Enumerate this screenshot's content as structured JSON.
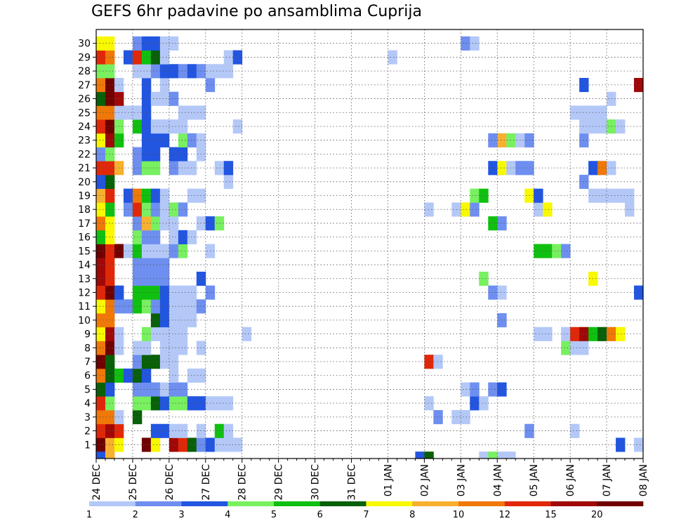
{
  "chart_data": {
    "type": "heatmap",
    "title": "GEFS 6hr padavine po ansamblima Cuprija",
    "x_tick_labels": [
      "24 DEC",
      "25 DEC",
      "26 DEC",
      "27 DEC",
      "28 DEC",
      "29 DEC",
      "30 DEC",
      "31 DEC",
      "01 JAN",
      "02 JAN",
      "03 JAN",
      "04 JAN",
      "05 JAN",
      "06 JAN",
      "07 JAN",
      "08 JAN"
    ],
    "y_tick_labels": [
      "1",
      "2",
      "3",
      "4",
      "5",
      "6",
      "7",
      "8",
      "9",
      "10",
      "11",
      "12",
      "13",
      "14",
      "15",
      "16",
      "17",
      "18",
      "19",
      "20",
      "21",
      "22",
      "23",
      "24",
      "25",
      "26",
      "27",
      "28",
      "29",
      "30"
    ],
    "time_steps_per_day": 4,
    "total_time_steps": 60,
    "grid": "dotted",
    "legend": {
      "position": "bottom",
      "labels": [
        "1",
        "2",
        "3",
        "4",
        "5",
        "6",
        "7",
        "8",
        "10",
        "12",
        "15",
        "20"
      ],
      "colors": [
        "#b4c8f8",
        "#6e8ff0",
        "#2255e0",
        "#78f060",
        "#10c010",
        "#086008",
        "#f8f800",
        "#f8b030",
        "#f07808",
        "#e02808",
        "#a00808",
        "#700000"
      ]
    },
    "cells": [
      [
        1,
        0,
        11
      ],
      [
        1,
        1,
        7
      ],
      [
        1,
        2,
        6
      ],
      [
        1,
        5,
        11
      ],
      [
        1,
        6,
        6
      ],
      [
        1,
        8,
        10
      ],
      [
        1,
        9,
        9
      ],
      [
        1,
        10,
        5
      ],
      [
        1,
        11,
        1
      ],
      [
        1,
        12,
        2
      ],
      [
        1,
        13,
        0
      ],
      [
        1,
        14,
        0
      ],
      [
        1,
        15,
        0
      ],
      [
        1,
        57,
        2
      ],
      [
        1,
        59,
        0
      ],
      [
        2,
        0,
        9
      ],
      [
        2,
        1,
        10
      ],
      [
        2,
        2,
        9
      ],
      [
        2,
        6,
        2
      ],
      [
        2,
        7,
        2
      ],
      [
        2,
        8,
        0
      ],
      [
        2,
        9,
        0
      ],
      [
        2,
        11,
        0
      ],
      [
        2,
        13,
        4
      ],
      [
        2,
        14,
        0
      ],
      [
        2,
        47,
        1
      ],
      [
        2,
        52,
        0
      ],
      [
        3,
        0,
        8
      ],
      [
        3,
        1,
        8
      ],
      [
        3,
        2,
        0
      ],
      [
        3,
        4,
        5
      ],
      [
        3,
        37,
        1
      ],
      [
        3,
        39,
        0
      ],
      [
        3,
        40,
        0
      ],
      [
        4,
        0,
        9
      ],
      [
        4,
        1,
        3
      ],
      [
        4,
        4,
        3
      ],
      [
        4,
        5,
        3
      ],
      [
        4,
        6,
        5
      ],
      [
        4,
        7,
        2
      ],
      [
        4,
        8,
        3
      ],
      [
        4,
        9,
        3
      ],
      [
        4,
        10,
        2
      ],
      [
        4,
        11,
        2
      ],
      [
        4,
        12,
        0
      ],
      [
        4,
        13,
        0
      ],
      [
        4,
        14,
        0
      ],
      [
        4,
        36,
        0
      ],
      [
        4,
        41,
        2
      ],
      [
        4,
        42,
        0
      ],
      [
        5,
        0,
        5
      ],
      [
        5,
        1,
        2
      ],
      [
        5,
        4,
        1
      ],
      [
        5,
        5,
        1
      ],
      [
        5,
        6,
        1
      ],
      [
        5,
        7,
        0
      ],
      [
        5,
        8,
        1
      ],
      [
        5,
        9,
        1
      ],
      [
        5,
        40,
        0
      ],
      [
        5,
        41,
        1
      ],
      [
        5,
        43,
        1
      ],
      [
        5,
        44,
        2
      ],
      [
        6,
        0,
        8
      ],
      [
        6,
        1,
        5
      ],
      [
        6,
        2,
        4
      ],
      [
        6,
        3,
        2
      ],
      [
        6,
        4,
        5
      ],
      [
        6,
        5,
        2
      ],
      [
        6,
        8,
        0
      ],
      [
        6,
        10,
        0
      ],
      [
        6,
        11,
        0
      ],
      [
        7,
        0,
        11
      ],
      [
        7,
        1,
        5
      ],
      [
        7,
        4,
        1
      ],
      [
        7,
        5,
        5
      ],
      [
        7,
        6,
        5
      ],
      [
        7,
        7,
        0
      ],
      [
        7,
        8,
        0
      ],
      [
        7,
        36,
        9
      ],
      [
        7,
        37,
        0
      ],
      [
        8,
        0,
        8
      ],
      [
        8,
        1,
        11
      ],
      [
        8,
        2,
        0
      ],
      [
        8,
        4,
        0
      ],
      [
        8,
        5,
        0
      ],
      [
        8,
        7,
        0
      ],
      [
        8,
        8,
        0
      ],
      [
        8,
        9,
        0
      ],
      [
        8,
        11,
        0
      ],
      [
        8,
        51,
        3
      ],
      [
        8,
        52,
        0
      ],
      [
        8,
        53,
        0
      ],
      [
        9,
        0,
        6
      ],
      [
        9,
        1,
        10
      ],
      [
        9,
        2,
        0
      ],
      [
        9,
        5,
        3
      ],
      [
        9,
        6,
        0
      ],
      [
        9,
        7,
        0
      ],
      [
        9,
        8,
        0
      ],
      [
        9,
        9,
        0
      ],
      [
        9,
        16,
        0
      ],
      [
        9,
        48,
        0
      ],
      [
        9,
        49,
        0
      ],
      [
        9,
        51,
        0
      ],
      [
        9,
        52,
        9
      ],
      [
        9,
        53,
        10
      ],
      [
        9,
        54,
        4
      ],
      [
        9,
        55,
        5
      ],
      [
        9,
        56,
        8
      ],
      [
        9,
        57,
        6
      ],
      [
        10,
        0,
        8
      ],
      [
        10,
        1,
        8
      ],
      [
        10,
        6,
        5
      ],
      [
        10,
        7,
        2
      ],
      [
        10,
        8,
        0
      ],
      [
        10,
        9,
        0
      ],
      [
        10,
        10,
        0
      ],
      [
        10,
        44,
        1
      ],
      [
        11,
        0,
        6
      ],
      [
        11,
        1,
        8
      ],
      [
        11,
        2,
        1
      ],
      [
        11,
        3,
        1
      ],
      [
        11,
        4,
        4
      ],
      [
        11,
        5,
        3
      ],
      [
        11,
        6,
        1
      ],
      [
        11,
        7,
        2
      ],
      [
        11,
        8,
        0
      ],
      [
        11,
        9,
        0
      ],
      [
        11,
        10,
        0
      ],
      [
        11,
        11,
        1
      ],
      [
        12,
        0,
        9
      ],
      [
        12,
        1,
        11
      ],
      [
        12,
        2,
        2
      ],
      [
        12,
        4,
        4
      ],
      [
        12,
        5,
        4
      ],
      [
        12,
        6,
        4
      ],
      [
        12,
        7,
        2
      ],
      [
        12,
        8,
        0
      ],
      [
        12,
        9,
        0
      ],
      [
        12,
        10,
        0
      ],
      [
        12,
        12,
        1
      ],
      [
        12,
        43,
        1
      ],
      [
        12,
        44,
        0
      ],
      [
        12,
        59,
        2
      ],
      [
        13,
        0,
        10
      ],
      [
        13,
        1,
        9
      ],
      [
        13,
        4,
        1
      ],
      [
        13,
        5,
        1
      ],
      [
        13,
        6,
        1
      ],
      [
        13,
        7,
        1
      ],
      [
        13,
        11,
        2
      ],
      [
        13,
        42,
        3
      ],
      [
        13,
        54,
        6
      ],
      [
        14,
        0,
        10
      ],
      [
        14,
        1,
        9
      ],
      [
        14,
        4,
        1
      ],
      [
        14,
        5,
        1
      ],
      [
        14,
        6,
        1
      ],
      [
        14,
        7,
        1
      ],
      [
        15,
        0,
        11
      ],
      [
        15,
        1,
        9
      ],
      [
        15,
        2,
        11
      ],
      [
        15,
        3,
        0
      ],
      [
        15,
        4,
        4
      ],
      [
        15,
        5,
        0
      ],
      [
        15,
        6,
        0
      ],
      [
        15,
        7,
        0
      ],
      [
        15,
        8,
        1
      ],
      [
        15,
        9,
        3
      ],
      [
        15,
        12,
        0
      ],
      [
        15,
        48,
        4
      ],
      [
        15,
        49,
        4
      ],
      [
        15,
        50,
        3
      ],
      [
        15,
        51,
        1
      ],
      [
        16,
        0,
        4
      ],
      [
        16,
        1,
        6
      ],
      [
        16,
        4,
        3
      ],
      [
        16,
        5,
        1
      ],
      [
        16,
        6,
        1
      ],
      [
        16,
        8,
        0
      ],
      [
        16,
        9,
        2
      ],
      [
        16,
        10,
        0
      ],
      [
        17,
        0,
        8
      ],
      [
        17,
        1,
        6
      ],
      [
        17,
        4,
        1
      ],
      [
        17,
        5,
        7
      ],
      [
        17,
        6,
        3
      ],
      [
        17,
        7,
        0
      ],
      [
        17,
        8,
        0
      ],
      [
        17,
        11,
        0
      ],
      [
        17,
        12,
        2
      ],
      [
        17,
        13,
        3
      ],
      [
        17,
        43,
        4
      ],
      [
        17,
        44,
        1
      ],
      [
        18,
        0,
        6
      ],
      [
        18,
        1,
        4
      ],
      [
        18,
        3,
        1
      ],
      [
        18,
        4,
        9
      ],
      [
        18,
        5,
        3
      ],
      [
        18,
        6,
        1
      ],
      [
        18,
        7,
        0
      ],
      [
        18,
        8,
        3
      ],
      [
        18,
        9,
        1
      ],
      [
        18,
        36,
        0
      ],
      [
        18,
        39,
        0
      ],
      [
        18,
        40,
        6
      ],
      [
        18,
        41,
        1
      ],
      [
        18,
        48,
        0
      ],
      [
        18,
        49,
        6
      ],
      [
        18,
        58,
        0
      ],
      [
        19,
        0,
        7
      ],
      [
        19,
        1,
        9
      ],
      [
        19,
        3,
        2
      ],
      [
        19,
        4,
        8
      ],
      [
        19,
        5,
        4
      ],
      [
        19,
        6,
        2
      ],
      [
        19,
        7,
        0
      ],
      [
        19,
        10,
        0
      ],
      [
        19,
        11,
        0
      ],
      [
        19,
        41,
        3
      ],
      [
        19,
        42,
        4
      ],
      [
        19,
        47,
        6
      ],
      [
        19,
        48,
        2
      ],
      [
        19,
        54,
        0
      ],
      [
        19,
        55,
        0
      ],
      [
        19,
        56,
        0
      ],
      [
        19,
        57,
        0
      ],
      [
        19,
        58,
        0
      ],
      [
        20,
        0,
        2
      ],
      [
        20,
        1,
        5
      ],
      [
        20,
        14,
        0
      ],
      [
        20,
        53,
        1
      ],
      [
        21,
        0,
        9
      ],
      [
        21,
        1,
        9
      ],
      [
        21,
        2,
        7
      ],
      [
        21,
        4,
        1
      ],
      [
        21,
        5,
        3
      ],
      [
        21,
        6,
        3
      ],
      [
        21,
        8,
        1
      ],
      [
        21,
        9,
        0
      ],
      [
        21,
        10,
        0
      ],
      [
        21,
        13,
        0
      ],
      [
        21,
        14,
        2
      ],
      [
        21,
        43,
        2
      ],
      [
        21,
        44,
        6
      ],
      [
        21,
        45,
        0
      ],
      [
        21,
        46,
        1
      ],
      [
        21,
        47,
        1
      ],
      [
        21,
        54,
        2
      ],
      [
        21,
        55,
        8
      ],
      [
        21,
        56,
        0
      ],
      [
        22,
        0,
        1
      ],
      [
        22,
        1,
        3
      ],
      [
        22,
        4,
        1
      ],
      [
        22,
        5,
        2
      ],
      [
        22,
        6,
        2
      ],
      [
        22,
        8,
        2
      ],
      [
        22,
        9,
        2
      ],
      [
        22,
        11,
        0
      ],
      [
        23,
        0,
        6
      ],
      [
        23,
        1,
        10
      ],
      [
        23,
        2,
        4
      ],
      [
        23,
        5,
        2
      ],
      [
        23,
        6,
        2
      ],
      [
        23,
        7,
        2
      ],
      [
        23,
        9,
        3
      ],
      [
        23,
        10,
        1
      ],
      [
        23,
        11,
        0
      ],
      [
        23,
        43,
        1
      ],
      [
        23,
        44,
        7
      ],
      [
        23,
        45,
        3
      ],
      [
        23,
        46,
        0
      ],
      [
        23,
        47,
        1
      ],
      [
        23,
        53,
        1
      ],
      [
        24,
        0,
        9
      ],
      [
        24,
        1,
        11
      ],
      [
        24,
        2,
        3
      ],
      [
        24,
        4,
        4
      ],
      [
        24,
        5,
        2
      ],
      [
        24,
        6,
        0
      ],
      [
        24,
        7,
        0
      ],
      [
        24,
        8,
        0
      ],
      [
        24,
        9,
        0
      ],
      [
        24,
        15,
        0
      ],
      [
        24,
        53,
        0
      ],
      [
        24,
        54,
        0
      ],
      [
        24,
        55,
        0
      ],
      [
        24,
        56,
        3
      ],
      [
        24,
        57,
        0
      ],
      [
        25,
        0,
        8
      ],
      [
        25,
        1,
        8
      ],
      [
        25,
        2,
        0
      ],
      [
        25,
        3,
        0
      ],
      [
        25,
        4,
        0
      ],
      [
        25,
        5,
        2
      ],
      [
        25,
        9,
        0
      ],
      [
        25,
        10,
        0
      ],
      [
        25,
        11,
        0
      ],
      [
        25,
        52,
        0
      ],
      [
        25,
        53,
        0
      ],
      [
        25,
        54,
        0
      ],
      [
        25,
        55,
        0
      ],
      [
        26,
        0,
        5
      ],
      [
        26,
        1,
        11
      ],
      [
        26,
        2,
        10
      ],
      [
        26,
        5,
        2
      ],
      [
        26,
        6,
        0
      ],
      [
        26,
        7,
        0
      ],
      [
        26,
        8,
        1
      ],
      [
        26,
        56,
        0
      ],
      [
        27,
        0,
        8
      ],
      [
        27,
        1,
        11
      ],
      [
        27,
        2,
        0
      ],
      [
        27,
        5,
        2
      ],
      [
        27,
        7,
        0
      ],
      [
        27,
        12,
        1
      ],
      [
        27,
        53,
        2
      ],
      [
        27,
        59,
        10
      ],
      [
        28,
        0,
        3
      ],
      [
        28,
        1,
        3
      ],
      [
        28,
        4,
        0
      ],
      [
        28,
        5,
        0
      ],
      [
        28,
        6,
        1
      ],
      [
        28,
        7,
        2
      ],
      [
        28,
        8,
        2
      ],
      [
        28,
        9,
        1
      ],
      [
        28,
        10,
        2
      ],
      [
        28,
        11,
        1
      ],
      [
        28,
        12,
        0
      ],
      [
        28,
        13,
        0
      ],
      [
        28,
        14,
        0
      ],
      [
        29,
        0,
        9
      ],
      [
        29,
        1,
        8
      ],
      [
        29,
        3,
        2
      ],
      [
        29,
        4,
        9
      ],
      [
        29,
        5,
        4
      ],
      [
        29,
        6,
        5
      ],
      [
        29,
        7,
        0
      ],
      [
        29,
        14,
        0
      ],
      [
        29,
        15,
        2
      ],
      [
        29,
        32,
        0
      ],
      [
        30,
        0,
        6
      ],
      [
        30,
        1,
        6
      ],
      [
        30,
        4,
        1
      ],
      [
        30,
        5,
        2
      ],
      [
        30,
        6,
        2
      ],
      [
        30,
        7,
        0
      ],
      [
        30,
        8,
        0
      ],
      [
        30,
        40,
        1
      ],
      [
        30,
        41,
        0
      ],
      [
        0,
        0,
        2
      ],
      [
        0,
        1,
        7
      ],
      [
        0,
        35,
        2
      ],
      [
        0,
        36,
        5
      ],
      [
        0,
        42,
        0
      ],
      [
        0,
        43,
        3
      ],
      [
        0,
        44,
        0
      ],
      [
        0,
        45,
        0
      ]
    ]
  }
}
